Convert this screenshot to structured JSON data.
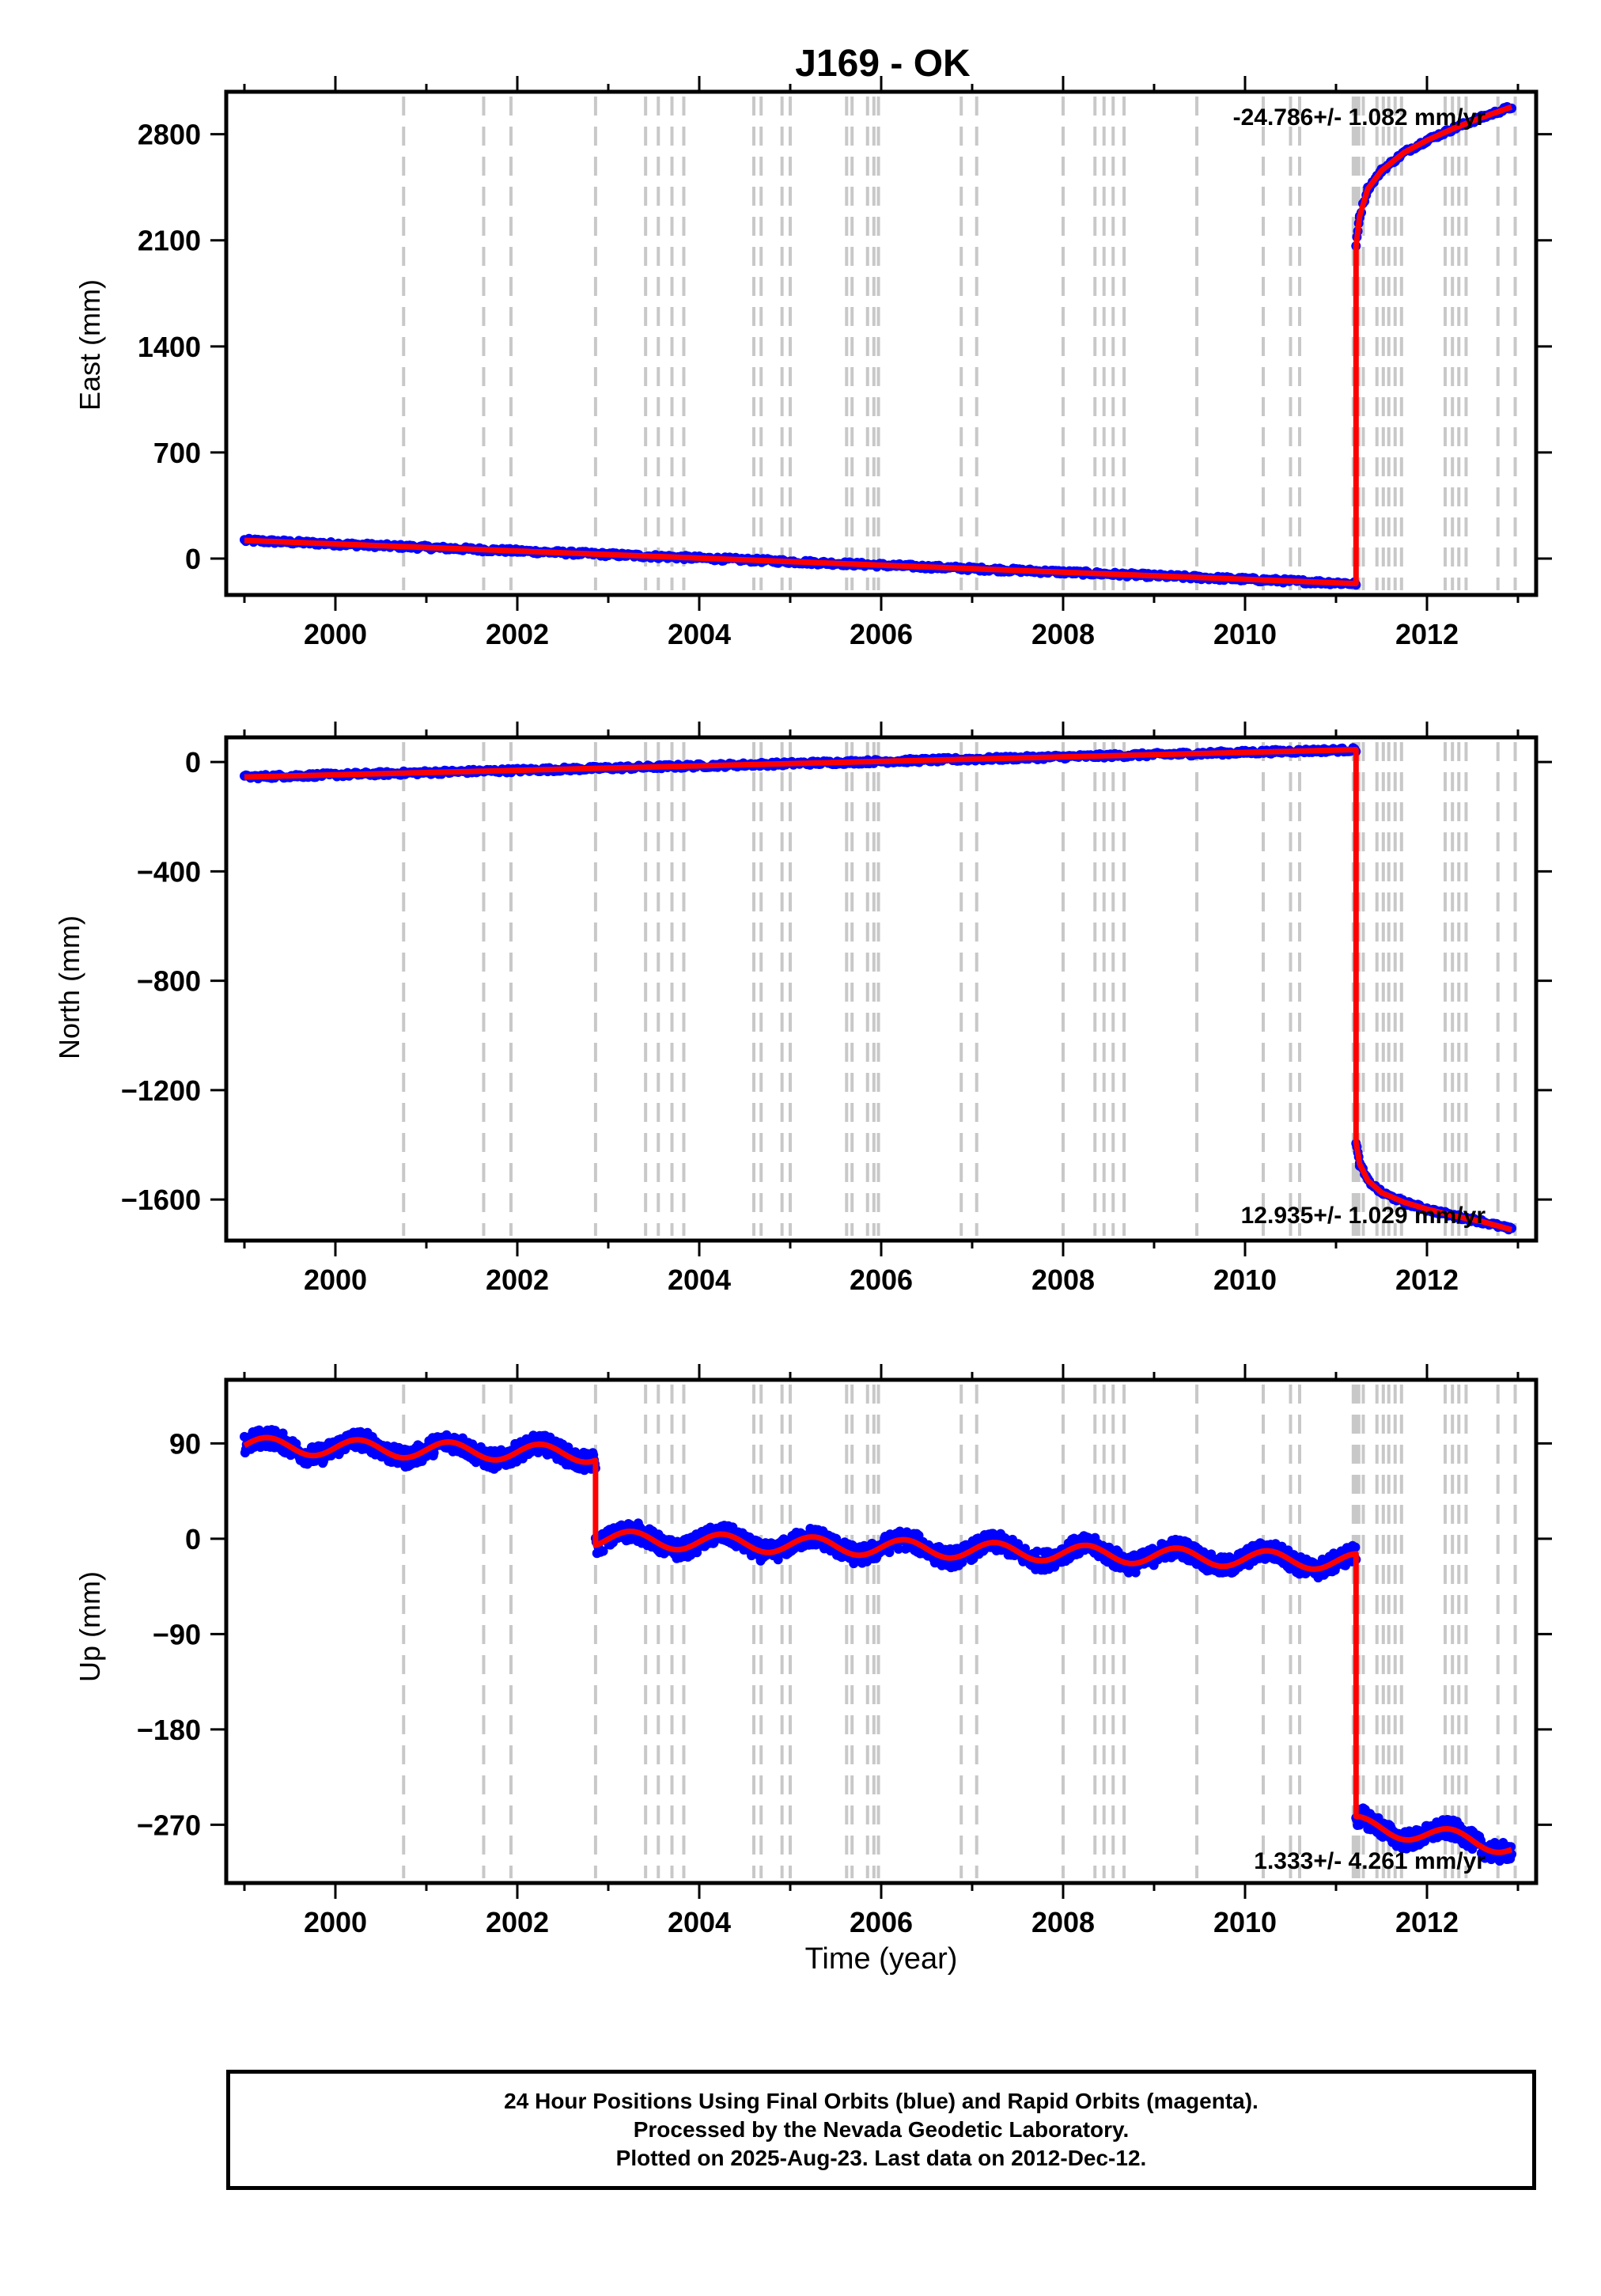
{
  "chart_data": {
    "type": "scatter",
    "title": "J169 - OK",
    "xlabel": "Time (year)",
    "xlim": [
      1998.8,
      2013.2
    ],
    "x_ticks": [
      "2000",
      "2002",
      "2004",
      "2006",
      "2008",
      "2010",
      "2012"
    ],
    "colors": {
      "observations": "#0000ff",
      "model": "#ff0000",
      "event_lines": "#c8c8c8"
    },
    "event_lines": [
      2000.75,
      2001.63,
      2001.93,
      2002.86,
      2003.41,
      2003.55,
      2003.7,
      2003.83,
      2004.6,
      2004.68,
      2004.91,
      2005.0,
      2005.62,
      2005.68,
      2005.85,
      2005.92,
      2005.97,
      2006.88,
      2007.05,
      2008.0,
      2008.35,
      2008.45,
      2008.55,
      2008.67,
      2009.47,
      2010.2,
      2010.5,
      2010.6,
      2011.19,
      2011.22,
      2011.25,
      2011.3,
      2011.45,
      2011.52,
      2011.58,
      2011.65,
      2011.72,
      2012.2,
      2012.28,
      2012.35,
      2012.43,
      2012.78,
      2012.97
    ],
    "panels": [
      {
        "ylabel": "East (mm)",
        "ylim": [
          -240,
          3080
        ],
        "y_ticks": [
          "0",
          "700",
          "1400",
          "2100",
          "2800"
        ],
        "rate_label": "-24.786+/- 1.082 mm/yr",
        "series": [
          {
            "x": [
              1999.0,
              2011.22
            ],
            "y": [
              120,
              -165
            ]
          },
          {
            "x": [
              2011.22,
              2011.26,
              2011.35,
              2011.5,
              2011.75,
              2012.0,
              2012.3,
              2012.6,
              2012.93
            ],
            "y": [
              2060,
              2260,
              2440,
              2560,
              2680,
              2760,
              2840,
              2910,
              2980
            ]
          }
        ]
      },
      {
        "ylabel": "North (mm)",
        "ylim": [
          -1750,
          90
        ],
        "y_ticks": [
          "0",
          "−400",
          "−800",
          "−1200",
          "−1600"
        ],
        "rate_label": "12.935+/- 1.029 mm/yr",
        "series": [
          {
            "x": [
              1999.0,
              2011.22
            ],
            "y": [
              -55,
              45
            ]
          },
          {
            "x": [
              2011.22,
              2011.26,
              2011.35,
              2011.5,
              2011.75,
              2012.0,
              2012.3,
              2012.6,
              2012.93
            ],
            "y": [
              -1390,
              -1470,
              -1530,
              -1575,
              -1610,
              -1635,
              -1660,
              -1680,
              -1710
            ]
          }
        ]
      },
      {
        "ylabel": "Up (mm)",
        "ylim": [
          -325,
          150
        ],
        "y_ticks": [
          "90",
          "0",
          "−90",
          "−180",
          "−270"
        ],
        "rate_label": "1.333+/- 4.261 mm/yr",
        "series": [
          {
            "x": [
              1999.0,
              2002.86
            ],
            "y": [
              88,
              80
            ]
          },
          {
            "x": [
              2002.86,
              2011.22
            ],
            "y": [
              0,
              -22
            ]
          },
          {
            "x": [
              2011.22,
              2012.93
            ],
            "y": [
              -270,
              -290
            ]
          }
        ]
      }
    ]
  },
  "caption": {
    "line1": "24 Hour Positions Using Final Orbits (blue) and Rapid Orbits (magenta).",
    "line2": "Processed by the Nevada Geodetic Laboratory.",
    "line3": "Plotted on 2025-Aug-23. Last data on 2012-Dec-12."
  }
}
